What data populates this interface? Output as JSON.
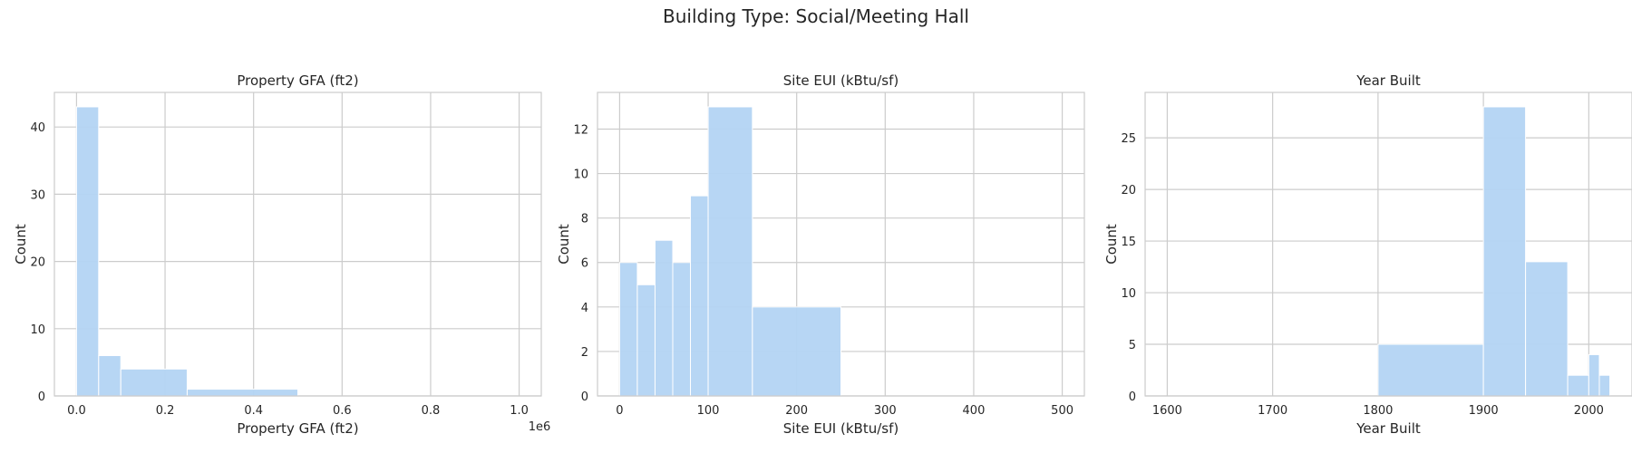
{
  "suptitle": "Building Type: Social/Meeting Hall",
  "colors": {
    "bar": "#b3d4f3",
    "grid": "#cccccc",
    "spine": "#cccccc",
    "text": "#262626"
  },
  "chart_data": [
    {
      "type": "bar",
      "title": "Property GFA (ft2)",
      "xlabel": "Property GFA (ft2)",
      "ylabel": "Count",
      "offset_label": "1e6",
      "xlim": [
        -0.05,
        1.05
      ],
      "ylim": [
        0,
        45.15
      ],
      "xticks": [
        0.0,
        0.2,
        0.4,
        0.6,
        0.8,
        1.0
      ],
      "xtick_labels": [
        "0.0",
        "0.2",
        "0.4",
        "0.6",
        "0.8",
        "1.0"
      ],
      "yticks": [
        0,
        10,
        20,
        30,
        40
      ],
      "ytick_labels": [
        "0",
        "10",
        "20",
        "30",
        "40"
      ],
      "bins": [
        {
          "x0": 0.0,
          "x1": 0.05,
          "count": 43
        },
        {
          "x0": 0.05,
          "x1": 0.1,
          "count": 6
        },
        {
          "x0": 0.1,
          "x1": 0.25,
          "count": 4
        },
        {
          "x0": 0.25,
          "x1": 0.5,
          "count": 1
        },
        {
          "x0": 0.5,
          "x1": 1.0,
          "count": 0
        }
      ]
    },
    {
      "type": "bar",
      "title": "Site EUI (kBtu/sf)",
      "xlabel": "Site EUI (kBtu/sf)",
      "ylabel": "Count",
      "xlim": [
        -25,
        525
      ],
      "ylim": [
        0,
        13.65
      ],
      "xticks": [
        0,
        100,
        200,
        300,
        400,
        500
      ],
      "xtick_labels": [
        "0",
        "100",
        "200",
        "300",
        "400",
        "500"
      ],
      "yticks": [
        0,
        2,
        4,
        6,
        8,
        10,
        12
      ],
      "ytick_labels": [
        "0",
        "2",
        "4",
        "6",
        "8",
        "10",
        "12"
      ],
      "bins": [
        {
          "x0": 0,
          "x1": 20,
          "count": 6
        },
        {
          "x0": 20,
          "x1": 40,
          "count": 5
        },
        {
          "x0": 40,
          "x1": 60,
          "count": 7
        },
        {
          "x0": 60,
          "x1": 80,
          "count": 6
        },
        {
          "x0": 80,
          "x1": 100,
          "count": 9
        },
        {
          "x0": 100,
          "x1": 150,
          "count": 13
        },
        {
          "x0": 150,
          "x1": 250,
          "count": 4
        },
        {
          "x0": 250,
          "x1": 500,
          "count": 0
        }
      ]
    },
    {
      "type": "bar",
      "title": "Year Built",
      "xlabel": "Year Built",
      "ylabel": "Count",
      "xlim": [
        1579,
        2041
      ],
      "ylim": [
        0,
        29.4
      ],
      "xticks": [
        1600,
        1700,
        1800,
        1900,
        2000
      ],
      "xtick_labels": [
        "1600",
        "1700",
        "1800",
        "1900",
        "2000"
      ],
      "yticks": [
        0,
        5,
        10,
        15,
        20,
        25
      ],
      "ytick_labels": [
        "0",
        "5",
        "10",
        "15",
        "20",
        "25"
      ],
      "bins": [
        {
          "x0": 1600,
          "x1": 1800,
          "count": 0
        },
        {
          "x0": 1800,
          "x1": 1900,
          "count": 5
        },
        {
          "x0": 1900,
          "x1": 1940,
          "count": 28
        },
        {
          "x0": 1940,
          "x1": 1980,
          "count": 13
        },
        {
          "x0": 1980,
          "x1": 2000,
          "count": 2
        },
        {
          "x0": 2000,
          "x1": 2010,
          "count": 4
        },
        {
          "x0": 2010,
          "x1": 2020,
          "count": 2
        }
      ]
    }
  ]
}
